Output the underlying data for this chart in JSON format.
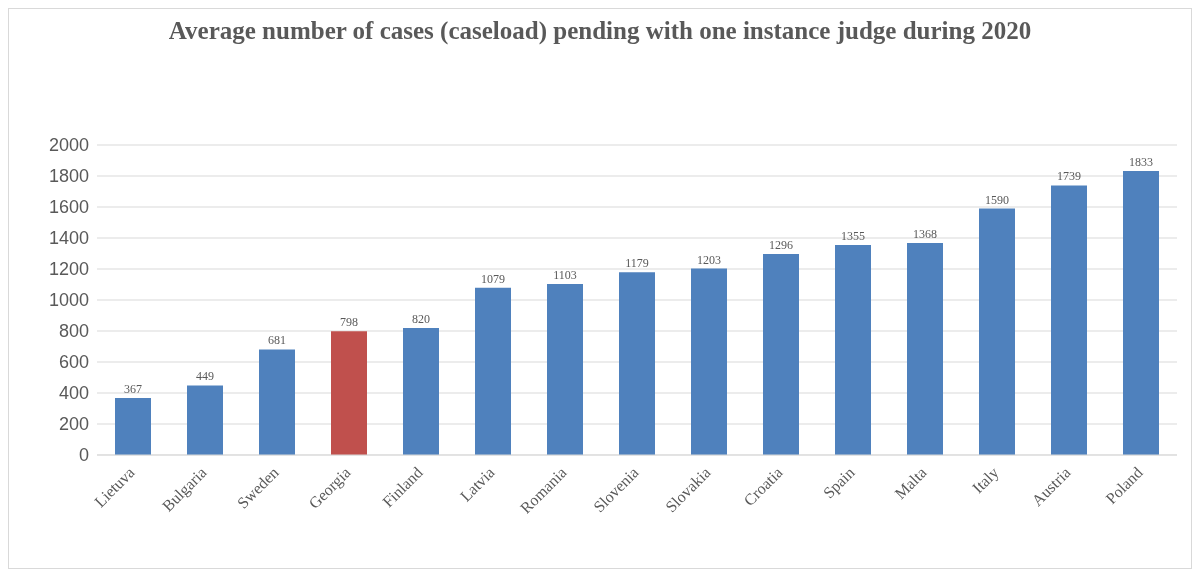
{
  "chart_data": {
    "type": "bar",
    "title": "Average number of cases (caseload) pending with one instance judge during 2020",
    "categories": [
      "Lietuva",
      "Bulgaria",
      "Sweden",
      "Georgia",
      "Finland",
      "Latvia",
      "Romania",
      "Slovenia",
      "Slovakia",
      "Croatia",
      "Spain",
      "Malta",
      "Italy",
      "Austria",
      "Poland"
    ],
    "values": [
      367,
      449,
      681,
      798,
      820,
      1079,
      1103,
      1179,
      1203,
      1296,
      1355,
      1368,
      1590,
      1739,
      1833
    ],
    "colors": [
      "#4f81bd",
      "#4f81bd",
      "#4f81bd",
      "#c0504d",
      "#4f81bd",
      "#4f81bd",
      "#4f81bd",
      "#4f81bd",
      "#4f81bd",
      "#4f81bd",
      "#4f81bd",
      "#4f81bd",
      "#4f81bd",
      "#4f81bd",
      "#4f81bd"
    ],
    "ylim": [
      0,
      2000
    ],
    "yticks": [
      0,
      200,
      400,
      600,
      800,
      1000,
      1200,
      1400,
      1600,
      1800,
      2000
    ],
    "grid": "y",
    "data_labels": true
  }
}
